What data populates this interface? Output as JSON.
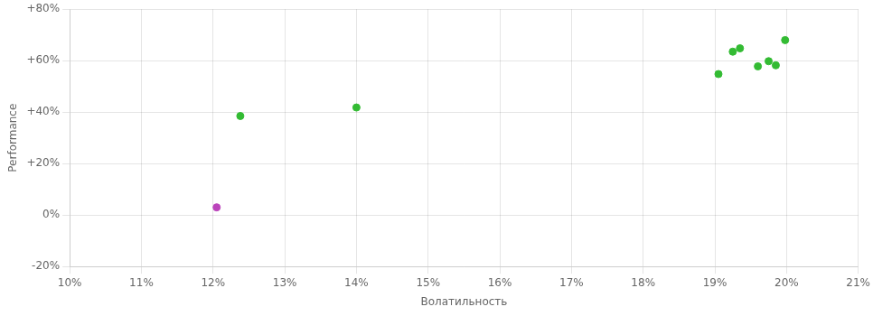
{
  "chart_data": {
    "type": "scatter",
    "xlabel": "Волатильность",
    "ylabel": "Performance",
    "series": [
      {
        "color": "#33bb33",
        "x": [
          0.1238,
          0.14,
          0.1905,
          0.1925,
          0.1935,
          0.196,
          0.1975,
          0.1985,
          0.1998
        ],
        "values": [
          0.385,
          0.418,
          0.548,
          0.635,
          0.648,
          0.578,
          0.598,
          0.582,
          0.68
        ]
      },
      {
        "color": "#bb44bb",
        "x": [
          0.1205
        ],
        "values": [
          0.03
        ]
      }
    ],
    "xlim": [
      0.1,
      0.21
    ],
    "xticks": [
      {
        "value": 0.1,
        "label": "10%"
      },
      {
        "value": 0.11,
        "label": "11%"
      },
      {
        "value": 0.12,
        "label": "12%"
      },
      {
        "value": 0.13,
        "label": "13%"
      },
      {
        "value": 0.14,
        "label": "14%"
      },
      {
        "value": 0.15,
        "label": "15%"
      },
      {
        "value": 0.16,
        "label": "16%"
      },
      {
        "value": 0.17,
        "label": "17%"
      },
      {
        "value": 0.18,
        "label": "18%"
      },
      {
        "value": 0.19,
        "label": "19%"
      },
      {
        "value": 0.2,
        "label": "20%"
      },
      {
        "value": 0.21,
        "label": "21%"
      }
    ],
    "ylim": [
      -0.2,
      0.8
    ],
    "yticks": [
      {
        "value": -0.2,
        "label": "-20%"
      },
      {
        "value": 0.0,
        "label": "0%"
      },
      {
        "value": 0.2,
        "label": "+20%"
      },
      {
        "value": 0.4,
        "label": "+40%"
      },
      {
        "value": 0.6,
        "label": "+60%"
      },
      {
        "value": 0.8,
        "label": "+80%"
      }
    ],
    "grid": true
  }
}
